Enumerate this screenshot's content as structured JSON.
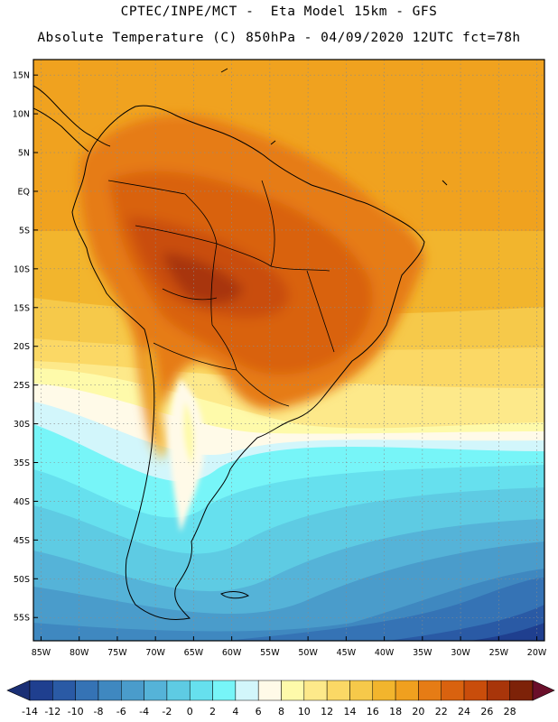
{
  "header": {
    "line1": "CPTEC/INPE/MCT -  Eta Model 15km - GFS",
    "line2": "Absolute Temperature (C) 850hPa - 04/09/2020 12UTC fct=78h"
  },
  "axes": {
    "lat_labels": [
      "15N",
      "10N",
      "5N",
      "EQ",
      "5S",
      "10S",
      "15S",
      "20S",
      "25S",
      "30S",
      "35S",
      "40S",
      "45S",
      "50S",
      "55S"
    ],
    "lat_values": [
      15,
      10,
      5,
      0,
      -5,
      -10,
      -15,
      -20,
      -25,
      -30,
      -35,
      -40,
      -45,
      -50,
      -55
    ],
    "lon_labels": [
      "85W",
      "80W",
      "75W",
      "70W",
      "65W",
      "60W",
      "55W",
      "50W",
      "45W",
      "40W",
      "35W",
      "30W",
      "25W",
      "20W"
    ],
    "lon_values": [
      -85,
      -80,
      -75,
      -70,
      -65,
      -60,
      -55,
      -50,
      -45,
      -40,
      -35,
      -30,
      -25,
      -20
    ],
    "lat_range": [
      -58,
      17
    ],
    "lon_range": [
      -86,
      -19
    ]
  },
  "colorbar": {
    "labels": [
      "-14",
      "-12",
      "-10",
      "-8",
      "-6",
      "-4",
      "-2",
      "0",
      "2",
      "4",
      "6",
      "8",
      "10",
      "12",
      "14",
      "16",
      "18",
      "20",
      "22",
      "24",
      "26",
      "28"
    ],
    "colors": [
      "#1f3f8f",
      "#2a5aa5",
      "#3573b5",
      "#3f88c0",
      "#4a9ccb",
      "#55b3d8",
      "#5ecbe3",
      "#66e0ee",
      "#77f5f8",
      "#d2f6fb",
      "#fffae8",
      "#fefaaa",
      "#fde98a",
      "#fbd865",
      "#f6c94a",
      "#f2b52d",
      "#f0a01f",
      "#e67c15",
      "#d9620f",
      "#c94d0b",
      "#a8350a",
      "#7d2208"
    ],
    "end_left": "#1a2f75",
    "end_right": "#6a0f2a"
  },
  "colors": {
    "frame": "#000000",
    "grid": "#8a8a8a",
    "coast": "#000000"
  }
}
